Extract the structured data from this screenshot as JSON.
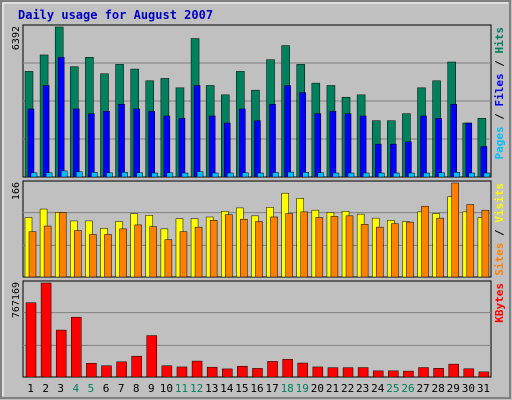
{
  "chart_data": {
    "type": "bar",
    "title": "Daily usage for August 2007",
    "colors": {
      "background": "#c0c0c0",
      "title": "#0000c0",
      "hits": "#00805c",
      "files": "#0000ff",
      "pages": "#00c0ff",
      "visits": "#ffff00",
      "sites": "#ff8000",
      "kbytes": "#ff0000",
      "weekend_label": "#00805c"
    },
    "categories": [
      "1",
      "2",
      "3",
      "4",
      "5",
      "6",
      "7",
      "8",
      "9",
      "10",
      "11",
      "12",
      "13",
      "14",
      "15",
      "16",
      "17",
      "18",
      "19",
      "20",
      "21",
      "22",
      "23",
      "24",
      "25",
      "26",
      "27",
      "28",
      "29",
      "30",
      "31"
    ],
    "weekend_days": [
      "4",
      "5",
      "11",
      "12",
      "18",
      "19",
      "25",
      "26"
    ],
    "panels": [
      {
        "name": "hits-files-pages",
        "max_label": "6392",
        "ylim": [
          0,
          6392
        ],
        "legend": [
          "Pages",
          "Files",
          "Hits"
        ],
        "series": [
          {
            "name": "Hits",
            "values": [
              4500,
              5200,
              6392,
              4700,
              5100,
              4400,
              4800,
              4600,
              4100,
              4200,
              3800,
              5900,
              3900,
              3500,
              4500,
              3700,
              5000,
              5600,
              4800,
              4000,
              3900,
              3400,
              3500,
              2400,
              2400,
              2700,
              3800,
              4100,
              4900,
              2300,
              2500
            ]
          },
          {
            "name": "Files",
            "values": [
              2900,
              3900,
              5100,
              2900,
              2700,
              2800,
              3100,
              2900,
              2800,
              2600,
              2500,
              3900,
              2600,
              2300,
              2900,
              2400,
              3100,
              3900,
              3600,
              2700,
              2800,
              2700,
              2600,
              1400,
              1400,
              1500,
              2600,
              2500,
              3100,
              2300,
              1300
            ]
          },
          {
            "name": "Pages",
            "values": [
              180,
              180,
              260,
              220,
              200,
              180,
              200,
              180,
              170,
              180,
              160,
              230,
              170,
              150,
              180,
              160,
              190,
              210,
              200,
              180,
              170,
              160,
              160,
              140,
              140,
              150,
              170,
              180,
              200,
              140,
              120
            ]
          }
        ]
      },
      {
        "name": "visits-sites",
        "max_label": "166",
        "ylim": [
          0,
          166
        ],
        "legend": [
          "Sites",
          "Visits"
        ],
        "series": [
          {
            "name": "Visits",
            "values": [
              105,
              120,
              114,
              99,
              99,
              86,
              98,
              112,
              109,
              85,
              103,
              103,
              106,
              116,
              122,
              108,
              123,
              148,
              139,
              118,
              114,
              116,
              111,
              104,
              100,
              98,
              115,
              112,
              142,
              115,
              105
            ]
          },
          {
            "name": "Sites",
            "values": [
              80,
              90,
              114,
              82,
              75,
              75,
              85,
              92,
              89,
              66,
              80,
              88,
              100,
              110,
              102,
              98,
              106,
              112,
              115,
              105,
              107,
              108,
              93,
              88,
              94,
              97,
              125,
              104,
              166,
              128,
              118
            ]
          }
        ]
      },
      {
        "name": "kbytes",
        "max_label": "767169",
        "ylim": [
          0,
          767169
        ],
        "legend": [
          "KBytes"
        ],
        "series": [
          {
            "name": "KBytes",
            "values": [
              606000,
              767169,
              383000,
              488000,
              112000,
              92000,
              124000,
              170000,
              338000,
              92000,
              82000,
              130000,
              80000,
              66000,
              88000,
              70000,
              127000,
              144000,
              114000,
              82000,
              76000,
              76000,
              77000,
              50000,
              50000,
              48000,
              77000,
              71000,
              105000,
              67000,
              42000
            ]
          }
        ]
      }
    ]
  }
}
